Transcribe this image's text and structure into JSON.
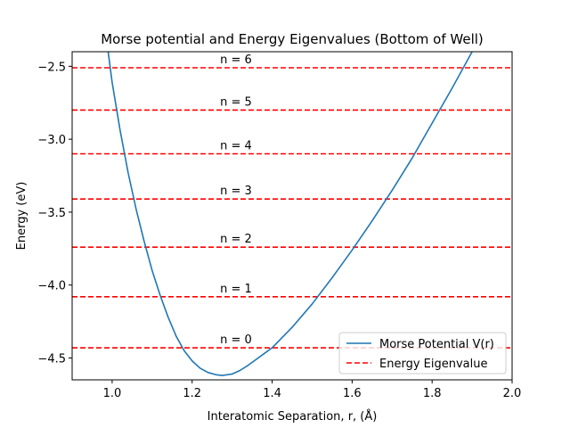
{
  "chart_data": {
    "type": "line",
    "title": "Morse potential and Energy Eigenvalues (Bottom of Well)",
    "xlabel": "Interatomic Separation, r, (Å)",
    "ylabel": "Energy (eV)",
    "xlim": [
      0.9,
      2.0
    ],
    "ylim": [
      -4.65,
      -2.4
    ],
    "xticks": [
      1.0,
      1.2,
      1.4,
      1.6,
      1.8,
      2.0
    ],
    "xtick_labels": [
      "1.0",
      "1.2",
      "1.4",
      "1.6",
      "1.8",
      "2.0"
    ],
    "yticks": [
      -4.5,
      -4.0,
      -3.5,
      -3.0,
      -2.5
    ],
    "ytick_labels": [
      "−4.5",
      "−4.0",
      "−3.5",
      "−3.0",
      "−2.5"
    ],
    "grid": false,
    "legend_position": "lower-right",
    "series": [
      {
        "name": "Morse Potential V(r)",
        "style": "solid",
        "color": "#1f77b4",
        "x": [
          0.99,
          1.0,
          1.02,
          1.04,
          1.06,
          1.08,
          1.1,
          1.12,
          1.14,
          1.16,
          1.18,
          1.2,
          1.22,
          1.24,
          1.26,
          1.275,
          1.3,
          1.32,
          1.34,
          1.36,
          1.38,
          1.4,
          1.45,
          1.5,
          1.55,
          1.6,
          1.65,
          1.7,
          1.75,
          1.8,
          1.85,
          1.9
        ],
        "y": [
          -2.4,
          -2.61,
          -2.94,
          -3.23,
          -3.48,
          -3.7,
          -3.9,
          -4.07,
          -4.22,
          -4.35,
          -4.45,
          -4.52,
          -4.57,
          -4.6,
          -4.615,
          -4.62,
          -4.61,
          -4.585,
          -4.55,
          -4.51,
          -4.47,
          -4.43,
          -4.29,
          -4.13,
          -3.95,
          -3.76,
          -3.56,
          -3.35,
          -3.13,
          -2.89,
          -2.65,
          -2.4
        ]
      }
    ],
    "energy_levels": {
      "name": "Energy Eigenvalue",
      "style": "dashed",
      "color": "#ff0000",
      "values": [
        -4.43,
        -4.08,
        -3.74,
        -3.41,
        -3.1,
        -2.8,
        -2.51
      ],
      "labels": [
        "n = 0",
        "n = 1",
        "n = 2",
        "n = 3",
        "n = 4",
        "n = 5",
        "n = 6"
      ],
      "label_x": 1.27
    }
  }
}
